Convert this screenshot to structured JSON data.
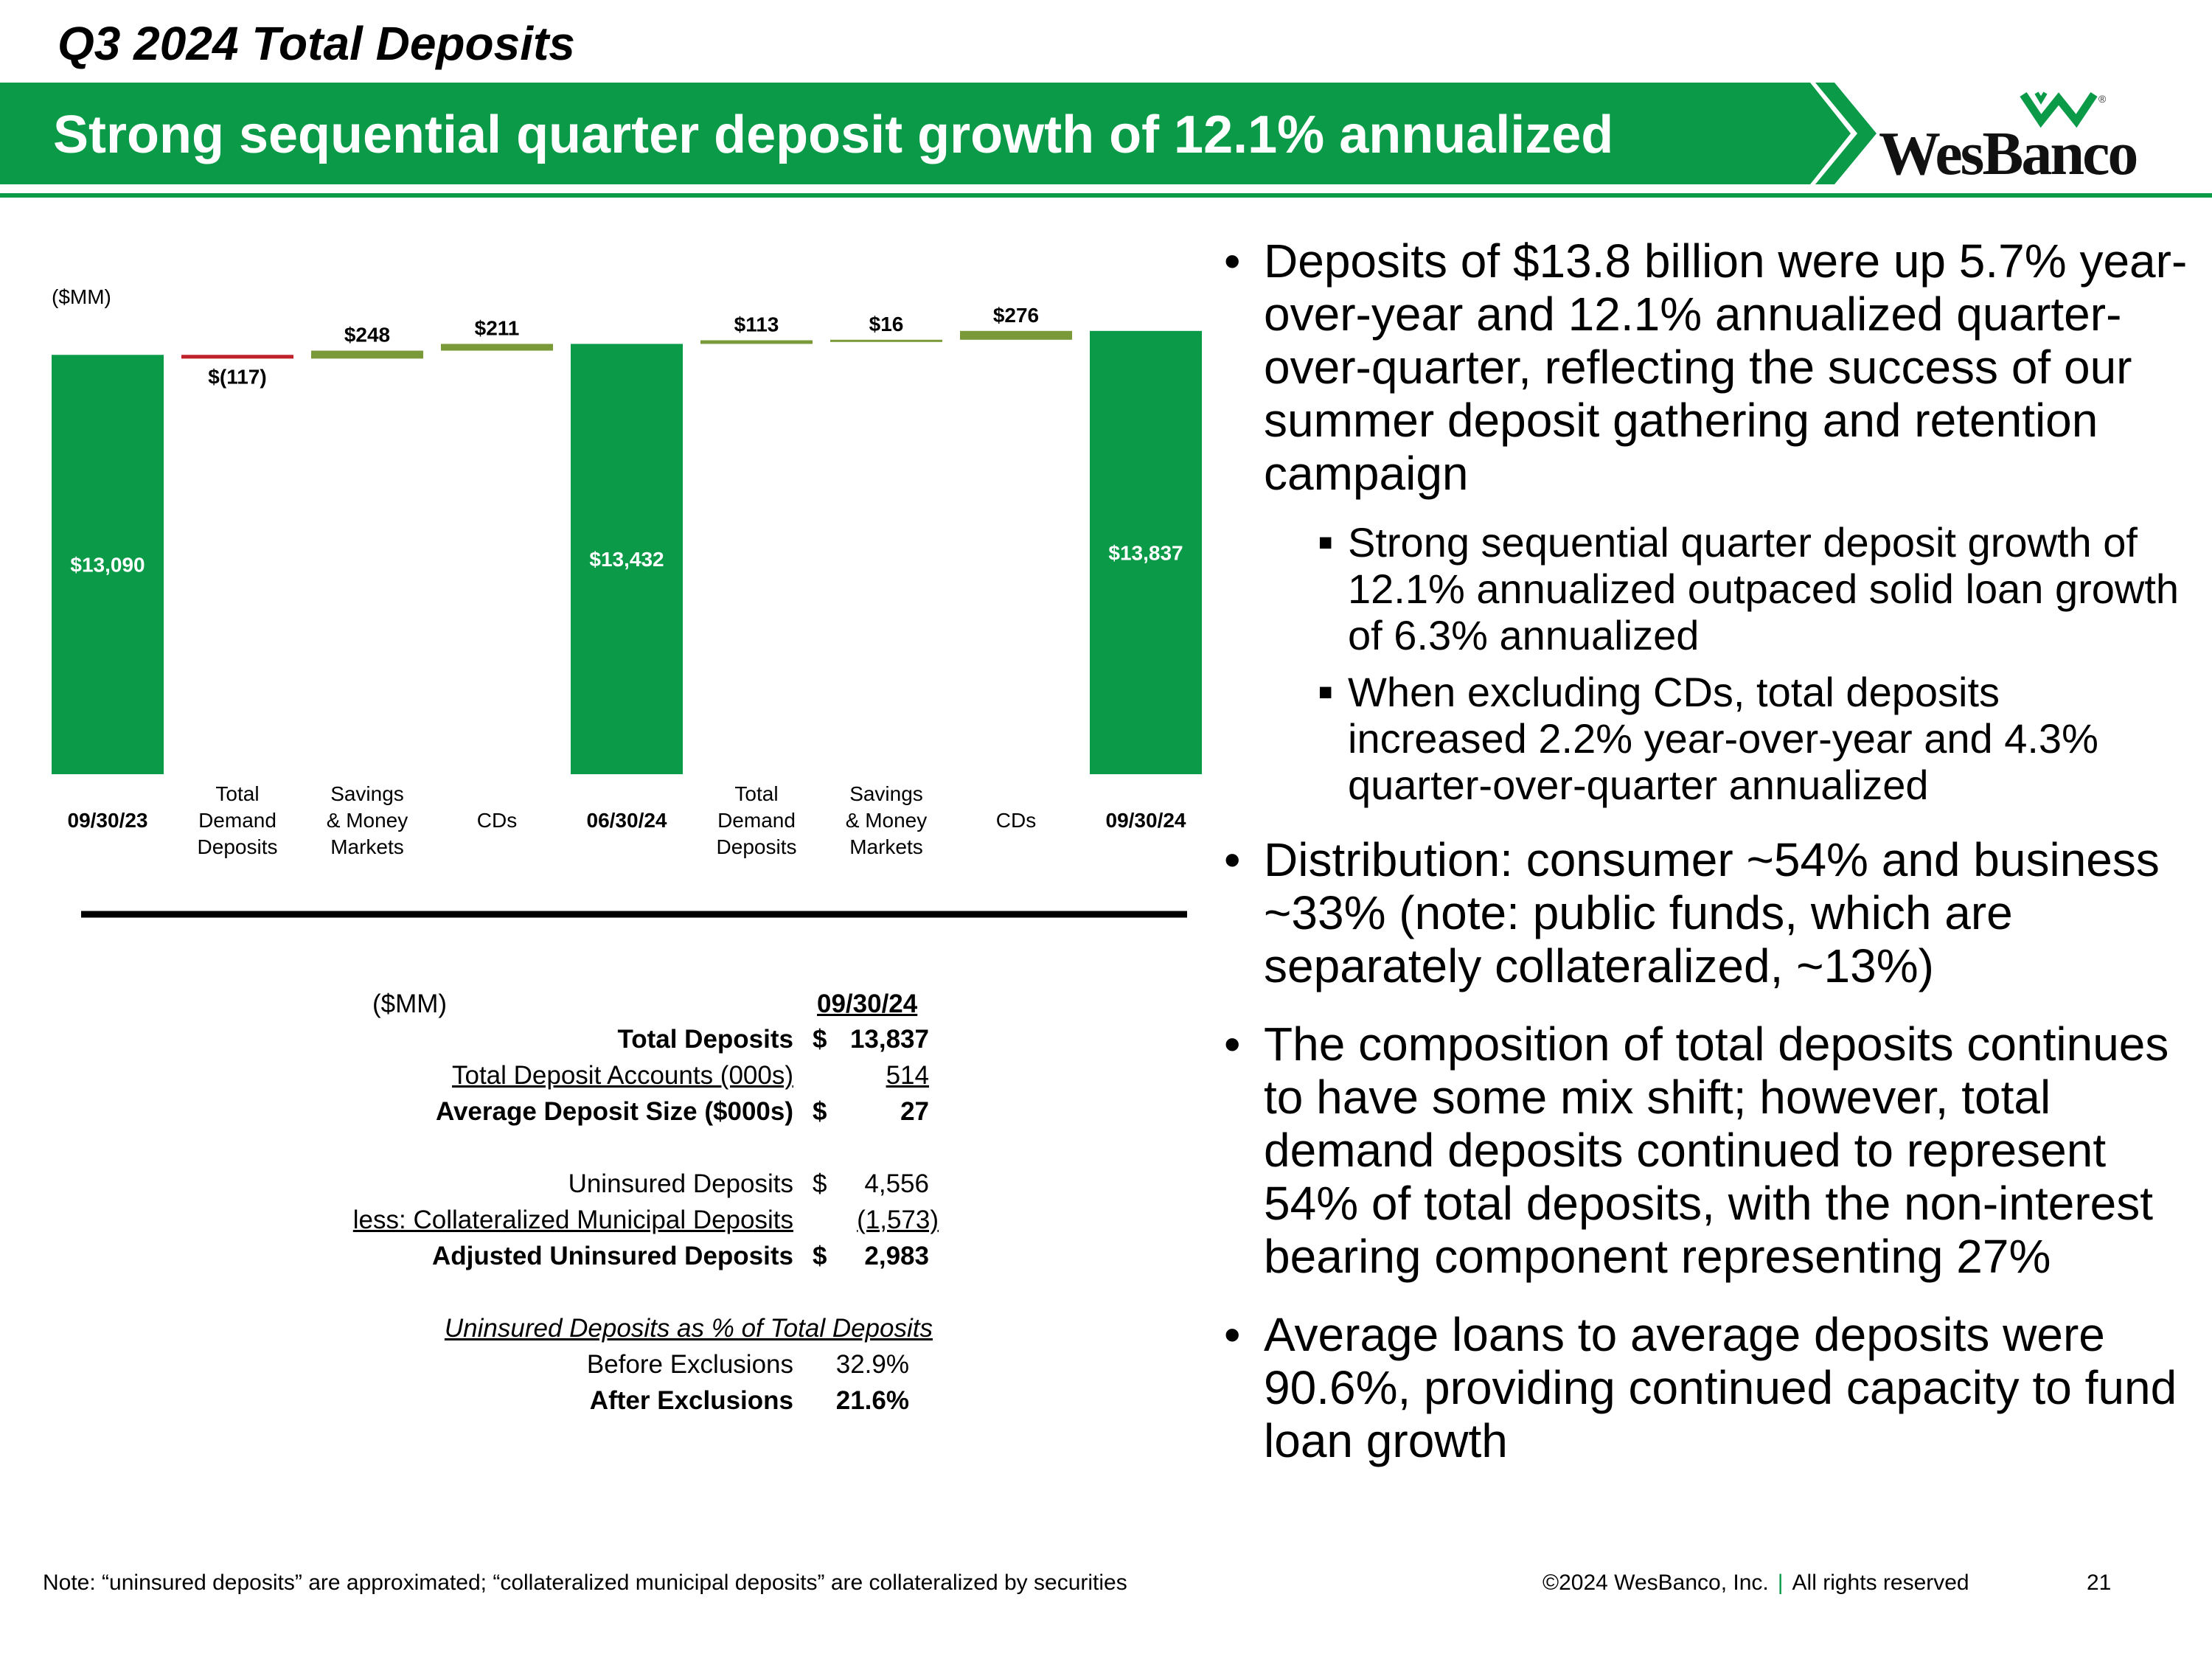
{
  "header": {
    "page_title": "Q3 2024 Total Deposits",
    "banner_title": "Strong sequential quarter deposit growth of 12.1% annualized",
    "logo_text": "WesBanco",
    "logo_registered": "®"
  },
  "colors": {
    "brand_green": "#0a9a48",
    "increase_olive": "#7a9a3a",
    "decrease_red": "#c0222b"
  },
  "chart_data": {
    "type": "waterfall",
    "unit_label": "($MM)",
    "title": "",
    "ylim": [
      0,
      14500
    ],
    "steps": [
      {
        "label_lines": [
          "09/30/23"
        ],
        "value": 13090,
        "kind": "total",
        "value_label": "$13,090"
      },
      {
        "label_lines": [
          "Total",
          "Demand",
          "Deposits"
        ],
        "value": -117,
        "kind": "change",
        "value_label": "$(117)"
      },
      {
        "label_lines": [
          "Savings",
          "& Money",
          "Markets"
        ],
        "value": 248,
        "kind": "change",
        "value_label": "$248"
      },
      {
        "label_lines": [
          "CDs"
        ],
        "value": 211,
        "kind": "change",
        "value_label": "$211"
      },
      {
        "label_lines": [
          "06/30/24"
        ],
        "value": 13432,
        "kind": "total",
        "value_label": "$13,432"
      },
      {
        "label_lines": [
          "Total",
          "Demand",
          "Deposits"
        ],
        "value": 113,
        "kind": "change",
        "value_label": "$113"
      },
      {
        "label_lines": [
          "Savings",
          "& Money",
          "Markets"
        ],
        "value": 16,
        "kind": "change",
        "value_label": "$16"
      },
      {
        "label_lines": [
          "CDs"
        ],
        "value": 276,
        "kind": "change",
        "value_label": "$276"
      },
      {
        "label_lines": [
          "09/30/24"
        ],
        "value": 13837,
        "kind": "total",
        "value_label": "$13,837"
      }
    ]
  },
  "table": {
    "unit_label": "($MM)",
    "column_header": "09/30/24",
    "total_deposits": {
      "label": "Total Deposits",
      "currency": "$",
      "value": "13,837"
    },
    "accounts": {
      "label": "Total Deposit Accounts (000s)",
      "currency": "",
      "value": "514"
    },
    "avg_size": {
      "label": "Average Deposit Size ($000s)",
      "currency": "$",
      "value": "27"
    },
    "uninsured": {
      "label": "Uninsured Deposits",
      "currency": "$",
      "value": "4,556"
    },
    "collateralized": {
      "label": "less: Collateralized Municipal Deposits",
      "currency": "",
      "value": "(1,573)"
    },
    "adjusted": {
      "label": "Adjusted Uninsured Deposits",
      "currency": "$",
      "value": "2,983"
    },
    "pct_header": "Uninsured Deposits as % of Total Deposits",
    "before": {
      "label": "Before Exclusions",
      "value": "32.9%"
    },
    "after": {
      "label": "After Exclusions",
      "value": "21.6%"
    }
  },
  "bullets": [
    {
      "text": "Deposits of $13.8 billion were up 5.7% year-over-year and 12.1% annualized quarter-over-quarter, reflecting the success of our summer deposit gathering and retention campaign",
      "sub": [
        "Strong sequential quarter deposit growth of 12.1% annualized outpaced solid loan growth of 6.3% annualized",
        "When excluding CDs, total deposits increased 2.2% year-over-year and 4.3% quarter-over-quarter annualized"
      ]
    },
    {
      "text": "Distribution: consumer ~54% and business ~33% (note: public funds, which are separately collateralized, ~13%)",
      "sub": []
    },
    {
      "text": "The composition of total deposits continues to have some mix shift; however, total demand deposits continued to represent 54% of total deposits, with the non-interest bearing component representing 27%",
      "sub": []
    },
    {
      "text": "Average loans to average deposits were 90.6%, providing continued capacity to fund loan growth",
      "sub": []
    }
  ],
  "footer": {
    "note": "Note: “uninsured deposits” are approximated; “collateralized municipal deposits” are collateralized by securities",
    "copyright": "©2024 WesBanco, Inc.",
    "separator": "|",
    "rights": "All rights reserved",
    "page_number": "21"
  }
}
